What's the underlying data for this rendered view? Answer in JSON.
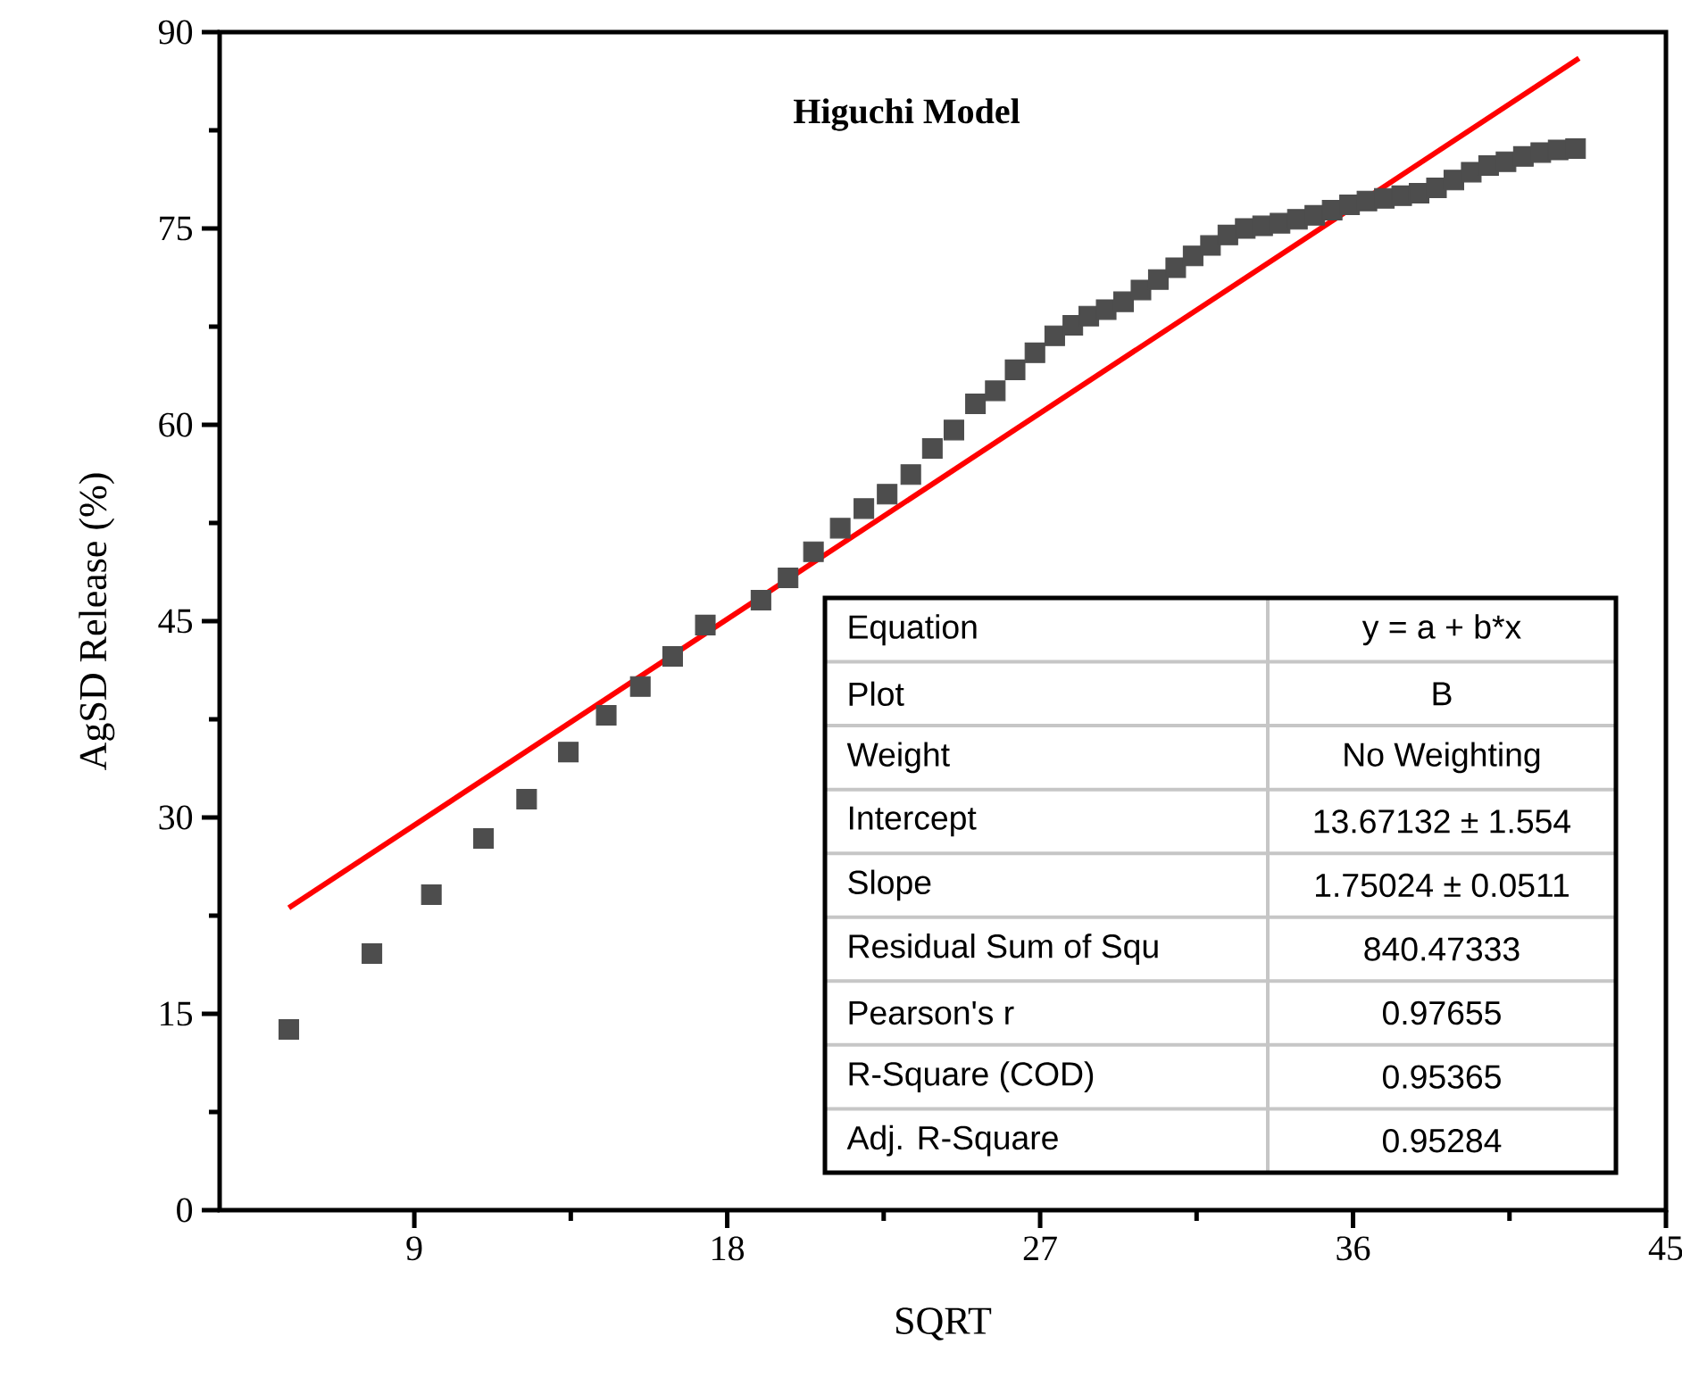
{
  "chart_data": {
    "type": "scatter",
    "title": "Higuchi Model",
    "xlabel": "SQRT",
    "ylabel": "AgSD Release (%)",
    "xlim": [
      3.4,
      45
    ],
    "ylim": [
      0,
      90
    ],
    "xticks": [
      9,
      18,
      27,
      36,
      45
    ],
    "yticks": [
      0,
      15,
      30,
      45,
      60,
      75,
      90
    ],
    "grid": false,
    "series": [
      {
        "type": "scatter",
        "marker": "square",
        "color": "#4d4d4d",
        "x": [
          5.39,
          7.78,
          9.49,
          10.99,
          12.23,
          13.43,
          14.52,
          15.5,
          16.43,
          17.37,
          18.97,
          19.75,
          20.48,
          21.25,
          21.93,
          22.6,
          23.28,
          23.9,
          24.52,
          25.14,
          25.71,
          26.28,
          26.85,
          27.42,
          27.94,
          28.4,
          28.9,
          29.4,
          29.9,
          30.4,
          30.9,
          31.4,
          31.9,
          32.4,
          32.9,
          33.4,
          33.9,
          34.4,
          34.9,
          35.4,
          35.9,
          36.4,
          36.9,
          37.4,
          37.9,
          38.4,
          38.9,
          39.4,
          39.9,
          40.4,
          40.9,
          41.4,
          41.9,
          42.4
        ],
        "values": [
          13.8,
          19.6,
          24.1,
          28.4,
          31.4,
          35.0,
          37.8,
          40.0,
          42.3,
          44.7,
          46.6,
          48.3,
          50.3,
          52.1,
          53.6,
          54.7,
          56.2,
          58.2,
          59.6,
          61.6,
          62.6,
          64.2,
          65.5,
          66.8,
          67.6,
          68.3,
          68.8,
          69.4,
          70.3,
          71.1,
          72.0,
          72.9,
          73.7,
          74.5,
          75.0,
          75.2,
          75.4,
          75.7,
          76.0,
          76.4,
          76.8,
          77.1,
          77.3,
          77.5,
          77.7,
          78.1,
          78.7,
          79.3,
          79.8,
          80.1,
          80.5,
          80.8,
          81.0,
          81.1
        ]
      },
      {
        "type": "line",
        "color": "#ff0000",
        "x": [
          5.39,
          42.5
        ],
        "values": [
          23.1,
          88.0
        ]
      }
    ],
    "annotations": [
      "Equation",
      "y = a + b*x",
      "Plot",
      "B",
      "Weight",
      "No Weighting",
      "Intercept",
      "13.67132 ± 1.554",
      "Slope",
      "1.75024 ± 0.0511",
      "Residual Sum of Squ",
      "840.47333",
      "Pearson's r",
      "0.97655",
      "R-Square (COD)",
      "0.95365",
      "Adj. R-Square",
      "0.95284"
    ]
  }
}
